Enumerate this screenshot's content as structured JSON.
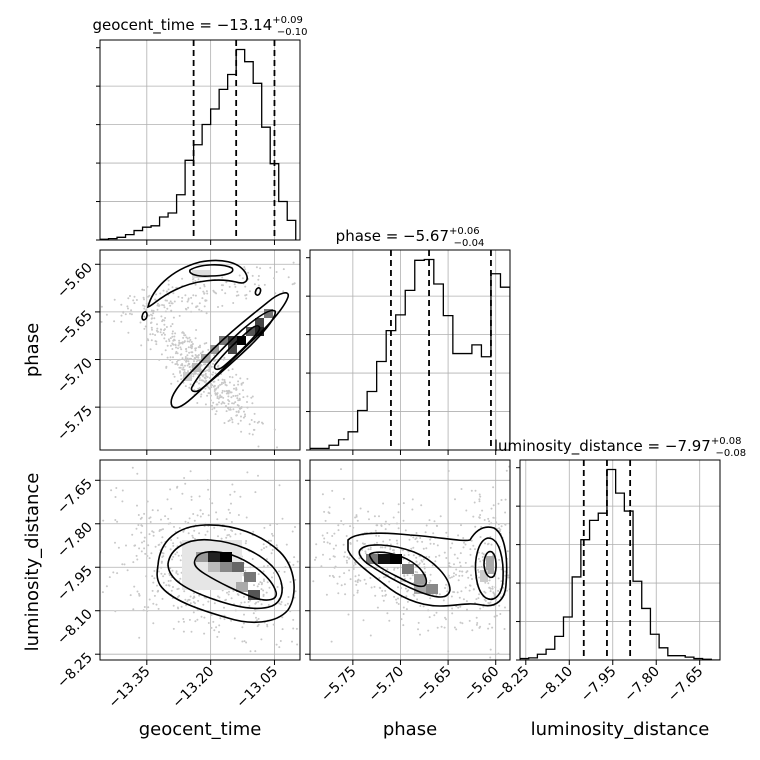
{
  "chart_data": {
    "type": "corner",
    "parameters": [
      "geocent_time",
      "phase",
      "luminosity_distance"
    ],
    "titles": [
      {
        "name": "geocent_time",
        "median": "−13.14",
        "plus": "+0.09",
        "minus": "−0.10"
      },
      {
        "name": "phase",
        "median": "−5.67",
        "plus": "+0.06",
        "minus": "−0.04"
      },
      {
        "name": "luminosity_distance",
        "median": "−7.97",
        "plus": "+0.08",
        "minus": "−0.08"
      }
    ],
    "ranges": {
      "geocent_time": [
        -13.46,
        -12.99
      ],
      "phase": [
        -5.795,
        -5.585
      ],
      "luminosity_distance": [
        -8.27,
        -7.58
      ]
    },
    "ticks": {
      "geocent_time": [
        {
          "v": -13.35,
          "label": "−13.35"
        },
        {
          "v": -13.2,
          "label": "−13.20"
        },
        {
          "v": -13.05,
          "label": "−13.05"
        }
      ],
      "phase": [
        {
          "v": -5.75,
          "label": "−5.75"
        },
        {
          "v": -5.7,
          "label": "−5.70"
        },
        {
          "v": -5.65,
          "label": "−5.65"
        },
        {
          "v": -5.6,
          "label": "−5.60"
        }
      ],
      "luminosity_distance": [
        {
          "v": -8.25,
          "label": "−8.25"
        },
        {
          "v": -8.1,
          "label": "−8.10"
        },
        {
          "v": -7.95,
          "label": "−7.95"
        },
        {
          "v": -7.8,
          "label": "−7.80"
        },
        {
          "v": -7.65,
          "label": "−7.65"
        }
      ]
    },
    "quantiles": {
      "geocent_time": [
        -13.24,
        -13.14,
        -13.05
      ],
      "phase": [
        -5.71,
        -5.67,
        -5.605
      ],
      "luminosity_distance": [
        -8.05,
        -7.97,
        -7.89
      ]
    },
    "histograms": {
      "geocent_time": {
        "edges": [
          -13.46,
          -13.44,
          -13.42,
          -13.4,
          -13.38,
          -13.36,
          -13.34,
          -13.32,
          -13.3,
          -13.28,
          -13.26,
          -13.24,
          -13.22,
          -13.2,
          -13.18,
          -13.16,
          -13.14,
          -13.12,
          -13.1,
          -13.08,
          -13.06,
          -13.04,
          -13.02,
          -13.0
        ],
        "counts": [
          1,
          2,
          4,
          8,
          14,
          19,
          21,
          34,
          40,
          67,
          118,
          141,
          171,
          194,
          223,
          245,
          282,
          264,
          232,
          167,
          113,
          57,
          29
        ]
      },
      "phase": {
        "edges": [
          -5.795,
          -5.785,
          -5.775,
          -5.765,
          -5.755,
          -5.745,
          -5.735,
          -5.725,
          -5.715,
          -5.705,
          -5.695,
          -5.685,
          -5.675,
          -5.665,
          -5.655,
          -5.645,
          -5.635,
          -5.625,
          -5.615,
          -5.605,
          -5.595,
          -5.585
        ],
        "counts": [
          2,
          2,
          6,
          13,
          23,
          50,
          74,
          112,
          151,
          171,
          202,
          240,
          241,
          210,
          170,
          122,
          122,
          133,
          118,
          223,
          206
        ]
      },
      "luminosity_distance": {
        "edges": [
          -8.27,
          -8.24,
          -8.21,
          -8.18,
          -8.15,
          -8.12,
          -8.09,
          -8.06,
          -8.03,
          -8.0,
          -7.97,
          -7.94,
          -7.91,
          -7.88,
          -7.85,
          -7.82,
          -7.79,
          -7.76,
          -7.73,
          -7.7,
          -7.67,
          -7.64,
          -7.61,
          -7.58
        ],
        "counts": [
          2,
          3,
          8,
          15,
          33,
          60,
          116,
          168,
          195,
          205,
          266,
          233,
          208,
          110,
          72,
          36,
          17,
          6,
          6,
          4,
          2,
          1,
          0
        ]
      }
    },
    "axis_labels": {
      "phase_y": "phase",
      "luminosity_distance_y": "luminosity_distance",
      "geocent_time_x": "geocent_time",
      "phase_x": "phase",
      "luminosity_distance_x": "luminosity_distance"
    },
    "grid": true
  }
}
